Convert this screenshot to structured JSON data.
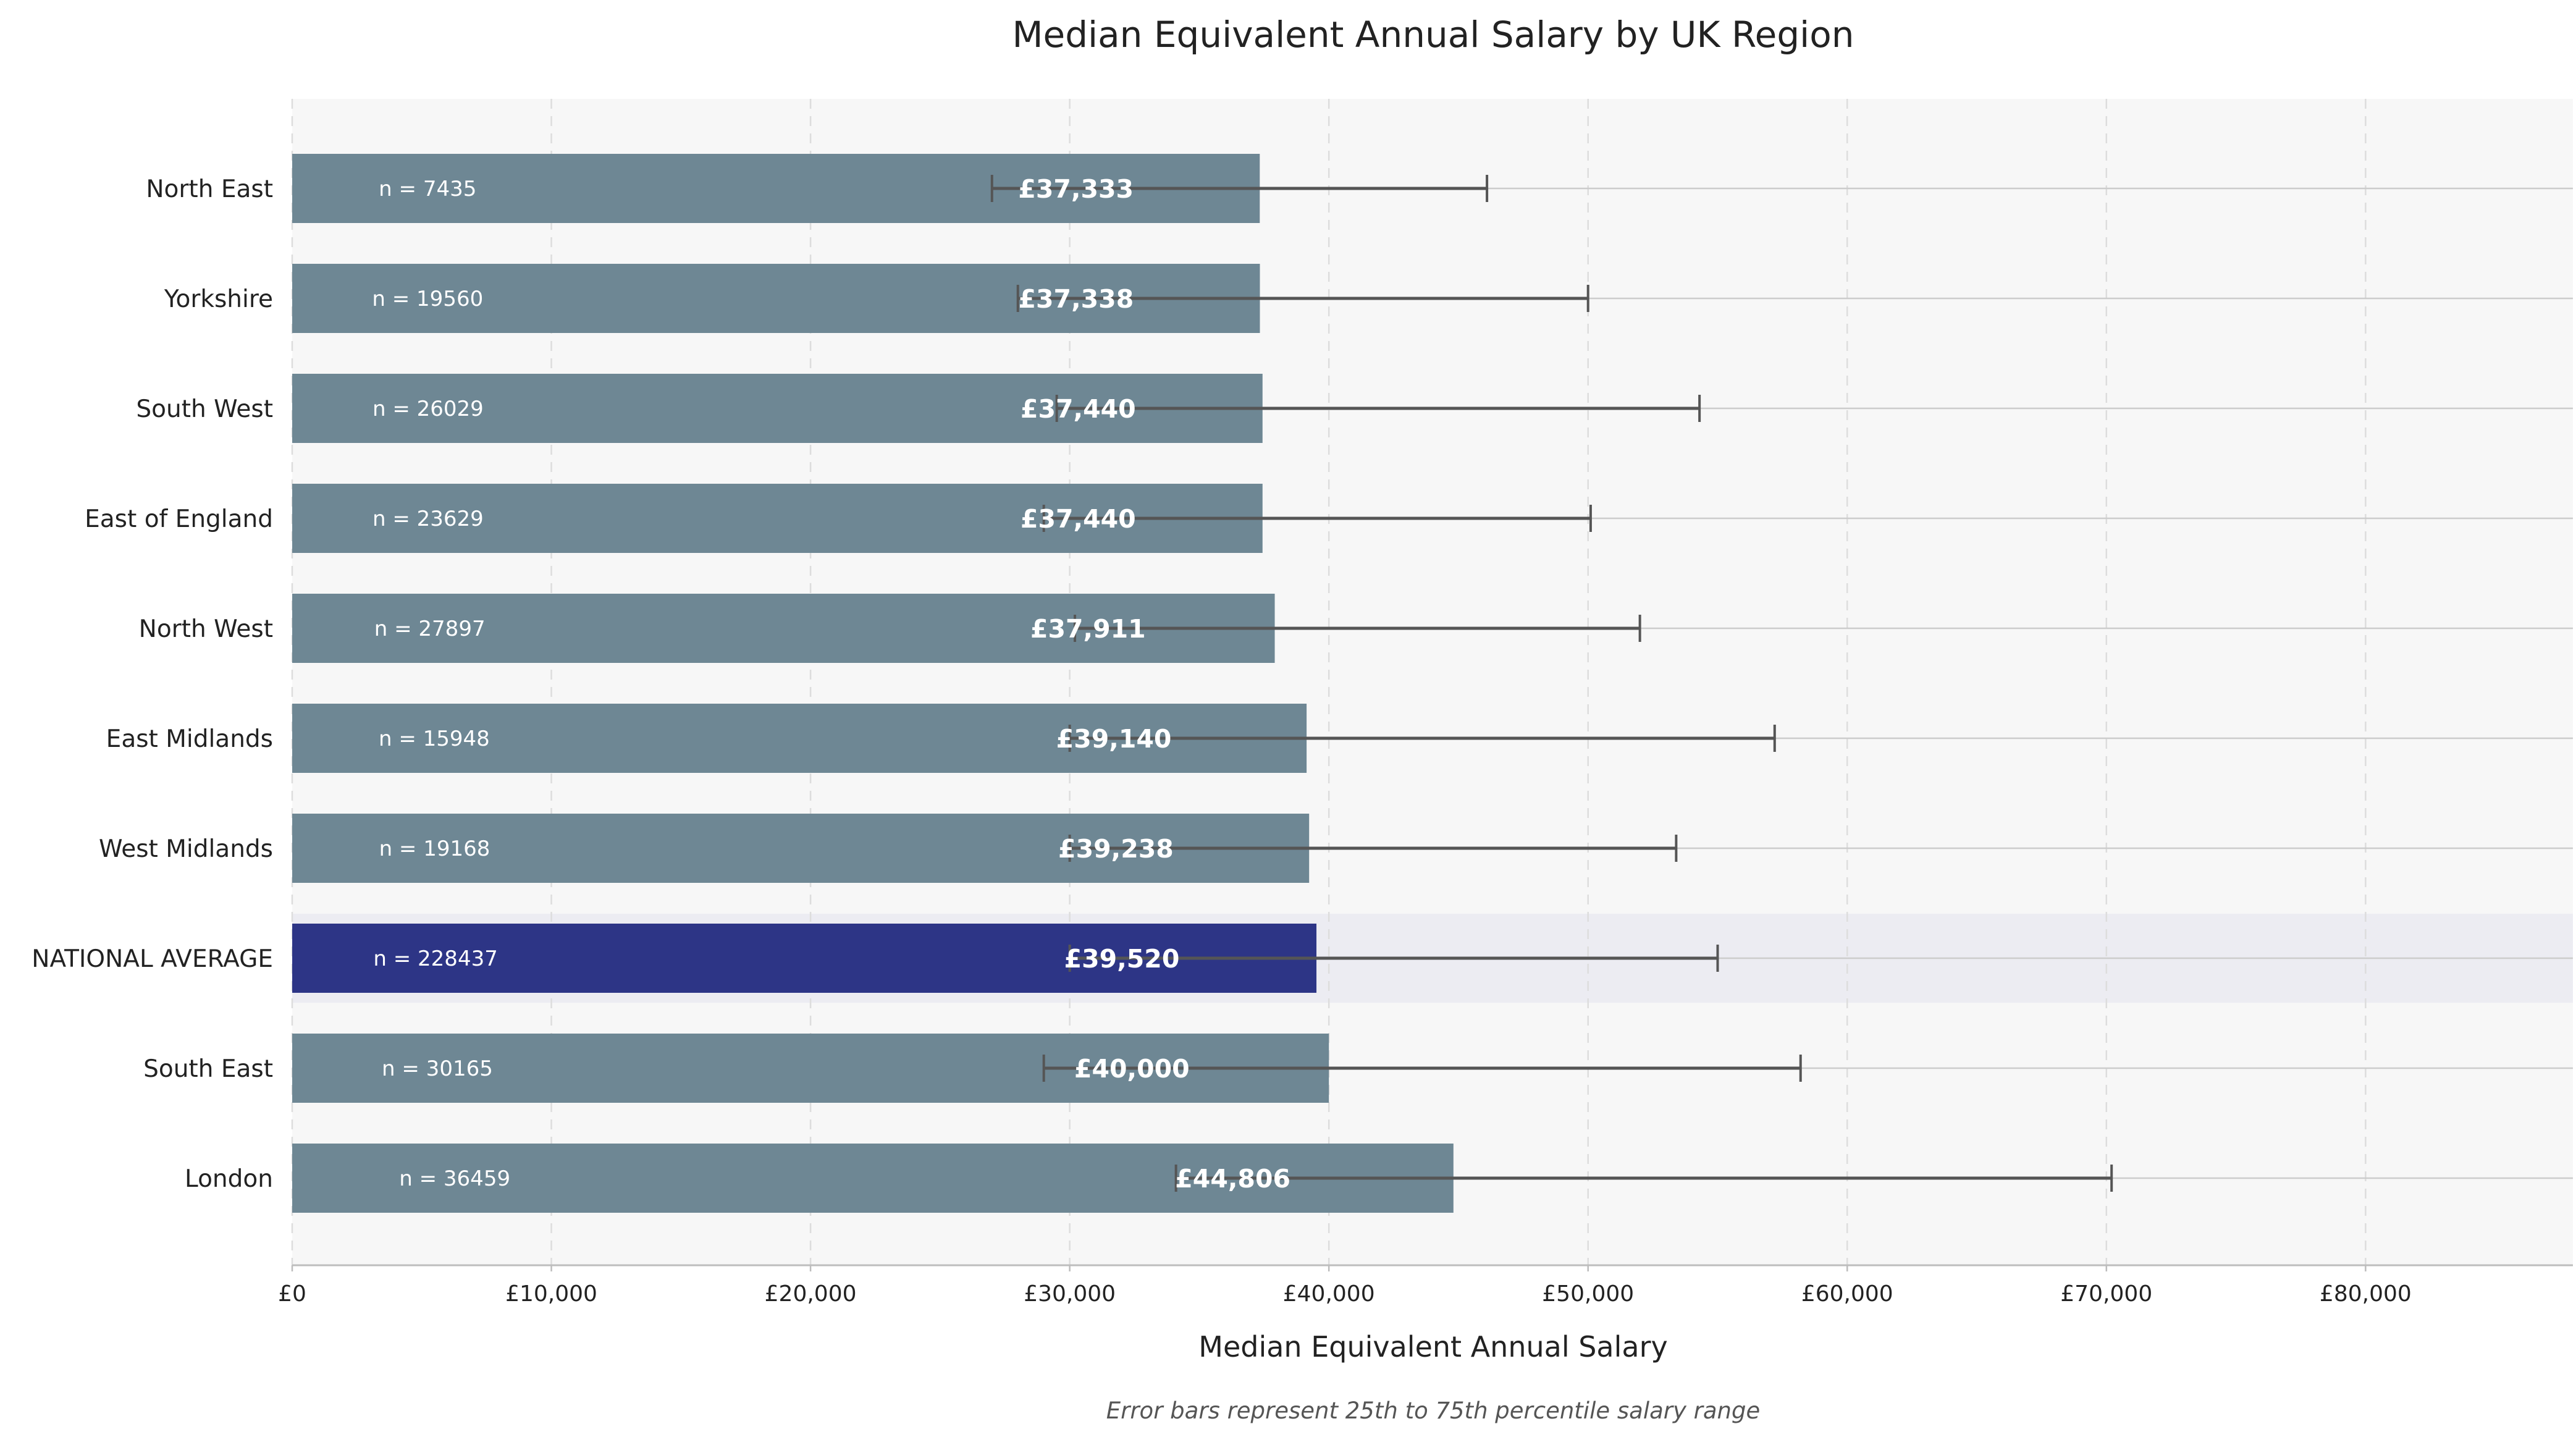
{
  "chart_data": {
    "type": "bar",
    "orientation": "horizontal",
    "title": "Median Equivalent Annual Salary by UK Region",
    "xlabel": "Median Equivalent Annual Salary",
    "caption": "Error bars represent 25th to 75th percentile salary range",
    "xlim": [
      0,
      88000
    ],
    "xticks": [
      0,
      10000,
      20000,
      30000,
      40000,
      50000,
      60000,
      70000,
      80000
    ],
    "xtick_labels": [
      "£0",
      "£10,000",
      "£20,000",
      "£30,000",
      "£40,000",
      "£50,000",
      "£60,000",
      "£70,000",
      "£80,000"
    ],
    "grid": true,
    "highlight_category": "NATIONAL AVERAGE",
    "colors": {
      "bar": "#6e8794",
      "highlight": "#2d3586",
      "highlight_band": "#ececf2",
      "plot_bg": "#f7f7f7",
      "errorbar": "#555555"
    },
    "categories": [
      "North East",
      "Yorkshire",
      "South West",
      "East of England",
      "North West",
      "East Midlands",
      "West Midlands",
      "NATIONAL AVERAGE",
      "South East",
      "London"
    ],
    "values": [
      37333,
      37338,
      37440,
      37440,
      37911,
      39140,
      39238,
      39520,
      40000,
      44806
    ],
    "value_labels": [
      "£37,333",
      "£37,338",
      "£37,440",
      "£37,440",
      "£37,911",
      "£39,140",
      "£39,238",
      "£39,520",
      "£40,000",
      "£44,806"
    ],
    "n_labels": [
      "n = 7435",
      "n = 19560",
      "n = 26029",
      "n = 23629",
      "n = 27897",
      "n = 15948",
      "n = 19168",
      "n = 228437",
      "n = 30165",
      "n = 36459"
    ],
    "p25": [
      27000,
      28000,
      29500,
      29000,
      30200,
      30000,
      30000,
      30000,
      29000,
      34100
    ],
    "p75": [
      46100,
      50000,
      54300,
      50100,
      52000,
      57200,
      53400,
      55000,
      58200,
      70200
    ]
  }
}
